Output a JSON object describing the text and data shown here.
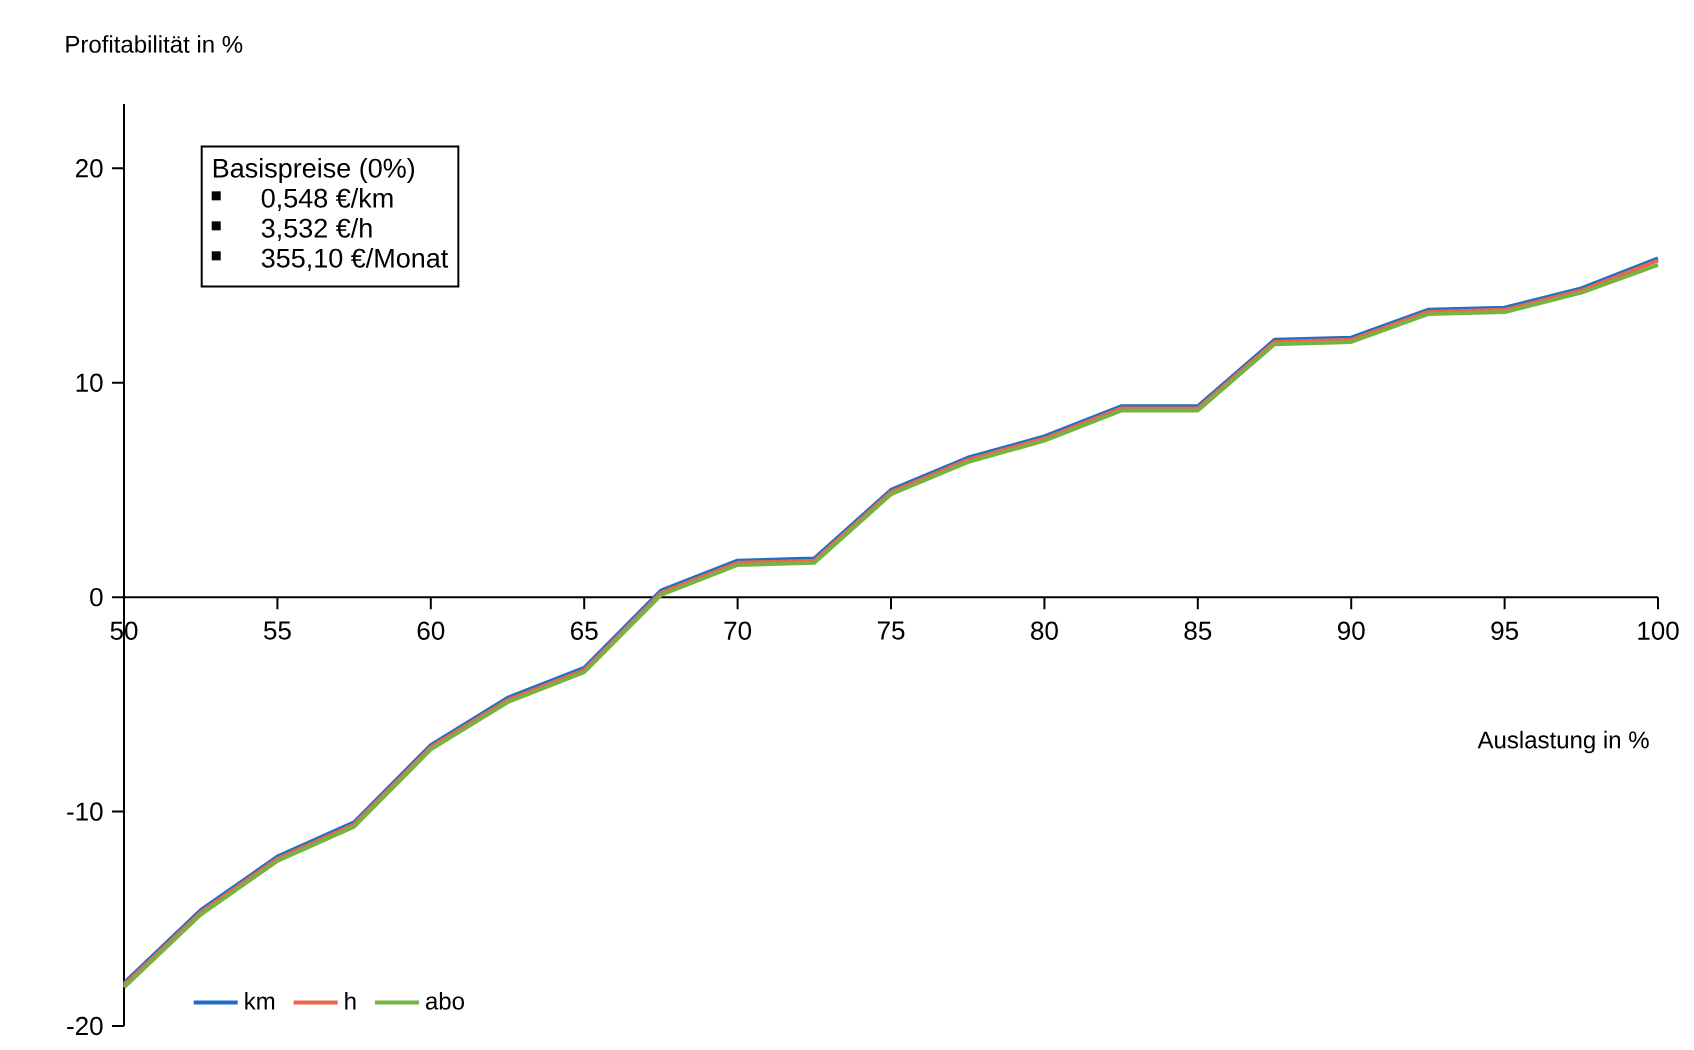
{
  "chart_data": {
    "type": "line",
    "xlabel": "Auslastung in %",
    "ylabel": "Profitabilität in %",
    "x": [
      50,
      52.5,
      55,
      57.5,
      60,
      62.5,
      65,
      67.5,
      70,
      72.5,
      75,
      77.5,
      80,
      82.5,
      85,
      87.5,
      90,
      92.5,
      95,
      97.5,
      100
    ],
    "series": [
      {
        "name": "km",
        "color": "#1f6fc6",
        "values": [
          -18.0,
          -14.6,
          -12.1,
          -10.5,
          -6.9,
          -4.7,
          -3.3,
          0.3,
          1.7,
          1.8,
          5.0,
          6.5,
          7.5,
          8.9,
          8.9,
          12.0,
          12.1,
          13.4,
          13.5,
          14.4,
          15.8
        ]
      },
      {
        "name": "h",
        "color": "#f0644a",
        "values": [
          -18.1,
          -14.7,
          -12.2,
          -10.6,
          -7.0,
          -4.8,
          -3.4,
          0.2,
          1.6,
          1.7,
          4.9,
          6.4,
          7.4,
          8.8,
          8.8,
          11.9,
          12.0,
          13.3,
          13.4,
          14.3,
          15.7
        ]
      },
      {
        "name": "abo",
        "color": "#77b343",
        "values": [
          -18.2,
          -14.8,
          -12.3,
          -10.7,
          -7.1,
          -4.9,
          -3.5,
          0.1,
          1.5,
          1.6,
          4.8,
          6.3,
          7.3,
          8.7,
          8.7,
          11.8,
          11.9,
          13.2,
          13.3,
          14.2,
          15.5
        ]
      }
    ],
    "xlim": [
      50,
      100
    ],
    "ylim": [
      -20,
      23
    ],
    "xticks": [
      50,
      55,
      60,
      65,
      70,
      75,
      80,
      85,
      90,
      95,
      100
    ],
    "yticks": [
      -20,
      -10,
      0,
      10,
      20
    ],
    "grid": false,
    "legend": "bottom left",
    "line_style": "solid",
    "marker": "none",
    "annotations": [
      "Basispreise (0%)",
      "0,548 €/km",
      "3,532 €/h",
      "355,10 €/Monat"
    ]
  }
}
